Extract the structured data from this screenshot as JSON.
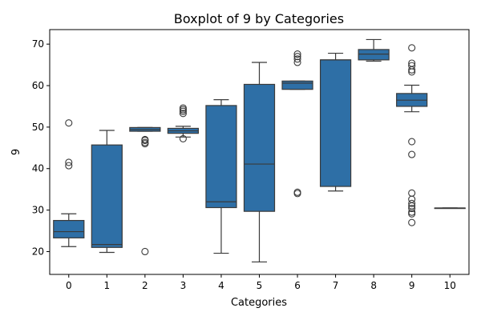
{
  "chart_data": {
    "type": "box",
    "title": "Boxplot of 9 by Categories",
    "xlabel": "Categories",
    "ylabel": "9",
    "ylim": [
      14.5,
      73.5
    ],
    "yticks": [
      20,
      30,
      40,
      50,
      60,
      70
    ],
    "categories": [
      "0",
      "1",
      "2",
      "3",
      "4",
      "5",
      "6",
      "7",
      "8",
      "9",
      "10"
    ],
    "box_color": "#2e6fa6",
    "line_color": "#3a3a3a",
    "boxes": [
      {
        "category": "0",
        "whisker_low": 21.2,
        "q1": 23.3,
        "median": 24.8,
        "q3": 27.5,
        "whisker_high": 29.1,
        "outliers": [
          40.7,
          41.5,
          51.0
        ]
      },
      {
        "category": "1",
        "whisker_low": 19.8,
        "q1": 21.0,
        "median": 21.7,
        "q3": 45.7,
        "whisker_high": 49.2,
        "outliers": []
      },
      {
        "category": "2",
        "whisker_low": 49.0,
        "q1": 49.0,
        "median": 49.4,
        "q3": 49.9,
        "whisker_high": 49.9,
        "outliers": [
          46.0,
          46.3,
          46.8,
          47.0,
          20.0
        ]
      },
      {
        "category": "3",
        "whisker_low": 47.6,
        "q1": 48.5,
        "median": 49.1,
        "q3": 49.7,
        "whisker_high": 50.2,
        "outliers": [
          47.2,
          53.3,
          53.8,
          54.2,
          54.6
        ]
      },
      {
        "category": "4",
        "whisker_low": 19.6,
        "q1": 30.6,
        "median": 32.0,
        "q3": 55.2,
        "whisker_high": 56.6,
        "outliers": []
      },
      {
        "category": "5",
        "whisker_low": 17.5,
        "q1": 29.7,
        "median": 41.1,
        "q3": 60.3,
        "whisker_high": 65.6,
        "outliers": []
      },
      {
        "category": "6",
        "whisker_low": 59.1,
        "q1": 59.1,
        "median": 60.6,
        "q3": 61.1,
        "whisker_high": 61.1,
        "outliers": [
          65.6,
          66.4,
          67.0,
          67.6,
          34.0,
          34.3
        ]
      },
      {
        "category": "7",
        "whisker_low": 34.6,
        "q1": 35.7,
        "median": 66.2,
        "q3": 66.2,
        "whisker_high": 67.8,
        "outliers": []
      },
      {
        "category": "8",
        "whisker_low": 65.9,
        "q1": 66.2,
        "median": 67.6,
        "q3": 68.7,
        "whisker_high": 71.1,
        "outliers": []
      },
      {
        "category": "9",
        "whisker_low": 53.7,
        "q1": 55.0,
        "median": 56.5,
        "q3": 58.1,
        "whisker_high": 60.1,
        "outliers": [
          63.3,
          63.8,
          64.8,
          65.4,
          69.1,
          46.5,
          43.4,
          34.1,
          32.6,
          31.6,
          31.0,
          30.4,
          29.5,
          29.1,
          27.0
        ]
      },
      {
        "category": "10",
        "whisker_low": 30.5,
        "q1": 30.5,
        "median": 30.5,
        "q3": 30.5,
        "whisker_high": 30.5,
        "outliers": []
      }
    ]
  }
}
